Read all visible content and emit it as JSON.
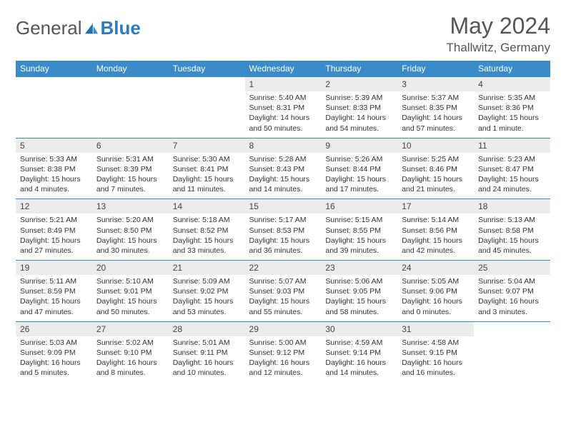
{
  "brand": {
    "part1": "General",
    "part2": "Blue"
  },
  "title": "May 2024",
  "location": "Thallwitz, Germany",
  "colors": {
    "header_bg": "#3b8bc9",
    "header_fg": "#ffffff",
    "daynum_bg": "#ececec",
    "border": "#3b8bc9",
    "text": "#333333"
  },
  "weekdays": [
    "Sunday",
    "Monday",
    "Tuesday",
    "Wednesday",
    "Thursday",
    "Friday",
    "Saturday"
  ],
  "weeks": [
    [
      null,
      null,
      null,
      {
        "n": "1",
        "sr": "Sunrise: 5:40 AM",
        "ss": "Sunset: 8:31 PM",
        "dl": "Daylight: 14 hours and 50 minutes."
      },
      {
        "n": "2",
        "sr": "Sunrise: 5:39 AM",
        "ss": "Sunset: 8:33 PM",
        "dl": "Daylight: 14 hours and 54 minutes."
      },
      {
        "n": "3",
        "sr": "Sunrise: 5:37 AM",
        "ss": "Sunset: 8:35 PM",
        "dl": "Daylight: 14 hours and 57 minutes."
      },
      {
        "n": "4",
        "sr": "Sunrise: 5:35 AM",
        "ss": "Sunset: 8:36 PM",
        "dl": "Daylight: 15 hours and 1 minute."
      }
    ],
    [
      {
        "n": "5",
        "sr": "Sunrise: 5:33 AM",
        "ss": "Sunset: 8:38 PM",
        "dl": "Daylight: 15 hours and 4 minutes."
      },
      {
        "n": "6",
        "sr": "Sunrise: 5:31 AM",
        "ss": "Sunset: 8:39 PM",
        "dl": "Daylight: 15 hours and 7 minutes."
      },
      {
        "n": "7",
        "sr": "Sunrise: 5:30 AM",
        "ss": "Sunset: 8:41 PM",
        "dl": "Daylight: 15 hours and 11 minutes."
      },
      {
        "n": "8",
        "sr": "Sunrise: 5:28 AM",
        "ss": "Sunset: 8:43 PM",
        "dl": "Daylight: 15 hours and 14 minutes."
      },
      {
        "n": "9",
        "sr": "Sunrise: 5:26 AM",
        "ss": "Sunset: 8:44 PM",
        "dl": "Daylight: 15 hours and 17 minutes."
      },
      {
        "n": "10",
        "sr": "Sunrise: 5:25 AM",
        "ss": "Sunset: 8:46 PM",
        "dl": "Daylight: 15 hours and 21 minutes."
      },
      {
        "n": "11",
        "sr": "Sunrise: 5:23 AM",
        "ss": "Sunset: 8:47 PM",
        "dl": "Daylight: 15 hours and 24 minutes."
      }
    ],
    [
      {
        "n": "12",
        "sr": "Sunrise: 5:21 AM",
        "ss": "Sunset: 8:49 PM",
        "dl": "Daylight: 15 hours and 27 minutes."
      },
      {
        "n": "13",
        "sr": "Sunrise: 5:20 AM",
        "ss": "Sunset: 8:50 PM",
        "dl": "Daylight: 15 hours and 30 minutes."
      },
      {
        "n": "14",
        "sr": "Sunrise: 5:18 AM",
        "ss": "Sunset: 8:52 PM",
        "dl": "Daylight: 15 hours and 33 minutes."
      },
      {
        "n": "15",
        "sr": "Sunrise: 5:17 AM",
        "ss": "Sunset: 8:53 PM",
        "dl": "Daylight: 15 hours and 36 minutes."
      },
      {
        "n": "16",
        "sr": "Sunrise: 5:15 AM",
        "ss": "Sunset: 8:55 PM",
        "dl": "Daylight: 15 hours and 39 minutes."
      },
      {
        "n": "17",
        "sr": "Sunrise: 5:14 AM",
        "ss": "Sunset: 8:56 PM",
        "dl": "Daylight: 15 hours and 42 minutes."
      },
      {
        "n": "18",
        "sr": "Sunrise: 5:13 AM",
        "ss": "Sunset: 8:58 PM",
        "dl": "Daylight: 15 hours and 45 minutes."
      }
    ],
    [
      {
        "n": "19",
        "sr": "Sunrise: 5:11 AM",
        "ss": "Sunset: 8:59 PM",
        "dl": "Daylight: 15 hours and 47 minutes."
      },
      {
        "n": "20",
        "sr": "Sunrise: 5:10 AM",
        "ss": "Sunset: 9:01 PM",
        "dl": "Daylight: 15 hours and 50 minutes."
      },
      {
        "n": "21",
        "sr": "Sunrise: 5:09 AM",
        "ss": "Sunset: 9:02 PM",
        "dl": "Daylight: 15 hours and 53 minutes."
      },
      {
        "n": "22",
        "sr": "Sunrise: 5:07 AM",
        "ss": "Sunset: 9:03 PM",
        "dl": "Daylight: 15 hours and 55 minutes."
      },
      {
        "n": "23",
        "sr": "Sunrise: 5:06 AM",
        "ss": "Sunset: 9:05 PM",
        "dl": "Daylight: 15 hours and 58 minutes."
      },
      {
        "n": "24",
        "sr": "Sunrise: 5:05 AM",
        "ss": "Sunset: 9:06 PM",
        "dl": "Daylight: 16 hours and 0 minutes."
      },
      {
        "n": "25",
        "sr": "Sunrise: 5:04 AM",
        "ss": "Sunset: 9:07 PM",
        "dl": "Daylight: 16 hours and 3 minutes."
      }
    ],
    [
      {
        "n": "26",
        "sr": "Sunrise: 5:03 AM",
        "ss": "Sunset: 9:09 PM",
        "dl": "Daylight: 16 hours and 5 minutes."
      },
      {
        "n": "27",
        "sr": "Sunrise: 5:02 AM",
        "ss": "Sunset: 9:10 PM",
        "dl": "Daylight: 16 hours and 8 minutes."
      },
      {
        "n": "28",
        "sr": "Sunrise: 5:01 AM",
        "ss": "Sunset: 9:11 PM",
        "dl": "Daylight: 16 hours and 10 minutes."
      },
      {
        "n": "29",
        "sr": "Sunrise: 5:00 AM",
        "ss": "Sunset: 9:12 PM",
        "dl": "Daylight: 16 hours and 12 minutes."
      },
      {
        "n": "30",
        "sr": "Sunrise: 4:59 AM",
        "ss": "Sunset: 9:14 PM",
        "dl": "Daylight: 16 hours and 14 minutes."
      },
      {
        "n": "31",
        "sr": "Sunrise: 4:58 AM",
        "ss": "Sunset: 9:15 PM",
        "dl": "Daylight: 16 hours and 16 minutes."
      },
      null
    ]
  ]
}
